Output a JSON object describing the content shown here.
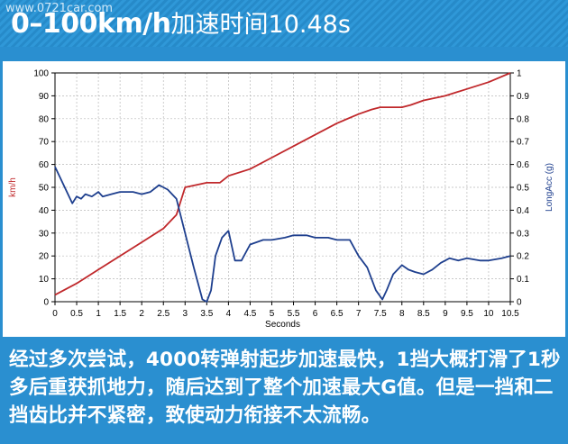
{
  "header": {
    "watermark": "www.0721car.com",
    "title_bold": "0–100km/h",
    "title_rest": "加速时间10.48s"
  },
  "chart_data": {
    "type": "line",
    "xlabel": "Seconds",
    "ylabel_left": "km/h",
    "ylabel_right": "LongAcc (g)",
    "xlim": [
      0,
      10.5
    ],
    "ylim_left": [
      0,
      100
    ],
    "ylim_right": [
      0,
      1
    ],
    "x_ticks": [
      "0",
      "0.5",
      "1",
      "1.5",
      "2",
      "2.5",
      "3",
      "3.5",
      "4",
      "4.5",
      "5",
      "5.5",
      "6",
      "6.5",
      "7",
      "7.5",
      "8",
      "8.5",
      "9",
      "9.5",
      "10",
      "10.5"
    ],
    "y_ticks_left": [
      "0",
      "10",
      "20",
      "30",
      "40",
      "50",
      "60",
      "70",
      "80",
      "90",
      "100"
    ],
    "y_ticks_right": [
      "0",
      "0.1",
      "0.2",
      "0.3",
      "0.4",
      "0.5",
      "0.6",
      "0.7",
      "0.8",
      "0.9",
      "1"
    ],
    "grid": true,
    "colors": {
      "speed": "#c0282b",
      "acc": "#1e3f8e"
    },
    "series": [
      {
        "axis": "left",
        "points": [
          [
            0,
            3
          ],
          [
            0.5,
            8
          ],
          [
            1,
            14
          ],
          [
            1.5,
            20
          ],
          [
            2,
            26
          ],
          [
            2.5,
            32
          ],
          [
            2.8,
            38
          ],
          [
            3,
            50
          ],
          [
            3.5,
            52
          ],
          [
            3.8,
            52
          ],
          [
            4,
            55
          ],
          [
            4.5,
            58
          ],
          [
            5,
            63
          ],
          [
            5.5,
            68
          ],
          [
            6,
            73
          ],
          [
            6.5,
            78
          ],
          [
            7,
            82
          ],
          [
            7.3,
            84
          ],
          [
            7.5,
            85
          ],
          [
            8,
            85
          ],
          [
            8.2,
            86
          ],
          [
            8.5,
            88
          ],
          [
            9,
            90
          ],
          [
            9.5,
            93
          ],
          [
            10,
            96
          ],
          [
            10.5,
            100
          ]
        ]
      },
      {
        "axis": "right",
        "points": [
          [
            0,
            0.59
          ],
          [
            0.15,
            0.53
          ],
          [
            0.3,
            0.47
          ],
          [
            0.4,
            0.43
          ],
          [
            0.5,
            0.46
          ],
          [
            0.6,
            0.45
          ],
          [
            0.7,
            0.47
          ],
          [
            0.85,
            0.46
          ],
          [
            1,
            0.48
          ],
          [
            1.1,
            0.46
          ],
          [
            1.3,
            0.47
          ],
          [
            1.5,
            0.48
          ],
          [
            1.8,
            0.48
          ],
          [
            2,
            0.47
          ],
          [
            2.2,
            0.48
          ],
          [
            2.4,
            0.51
          ],
          [
            2.6,
            0.49
          ],
          [
            2.8,
            0.45
          ],
          [
            3,
            0.3
          ],
          [
            3.2,
            0.15
          ],
          [
            3.4,
            0.01
          ],
          [
            3.5,
            0
          ],
          [
            3.6,
            0.05
          ],
          [
            3.7,
            0.2
          ],
          [
            3.85,
            0.28
          ],
          [
            4,
            0.31
          ],
          [
            4.15,
            0.18
          ],
          [
            4.3,
            0.18
          ],
          [
            4.5,
            0.25
          ],
          [
            4.8,
            0.27
          ],
          [
            5,
            0.27
          ],
          [
            5.3,
            0.28
          ],
          [
            5.5,
            0.29
          ],
          [
            5.8,
            0.29
          ],
          [
            6,
            0.28
          ],
          [
            6.3,
            0.28
          ],
          [
            6.5,
            0.27
          ],
          [
            6.8,
            0.27
          ],
          [
            7,
            0.2
          ],
          [
            7.2,
            0.15
          ],
          [
            7.4,
            0.05
          ],
          [
            7.55,
            0.01
          ],
          [
            7.65,
            0.05
          ],
          [
            7.8,
            0.12
          ],
          [
            8,
            0.16
          ],
          [
            8.15,
            0.14
          ],
          [
            8.3,
            0.13
          ],
          [
            8.5,
            0.12
          ],
          [
            8.7,
            0.14
          ],
          [
            8.9,
            0.17
          ],
          [
            9.1,
            0.19
          ],
          [
            9.3,
            0.18
          ],
          [
            9.5,
            0.19
          ],
          [
            9.8,
            0.18
          ],
          [
            10,
            0.18
          ],
          [
            10.3,
            0.19
          ],
          [
            10.5,
            0.2
          ]
        ]
      }
    ]
  },
  "caption": {
    "text": "经过多次尝试，4000转弹射起步加速最快，1挡大概打滑了1秒多后重获抓地力，随后达到了整个加速最大G值。但是一挡和二挡齿比并不紧密，致使动力衔接不太流畅。"
  }
}
